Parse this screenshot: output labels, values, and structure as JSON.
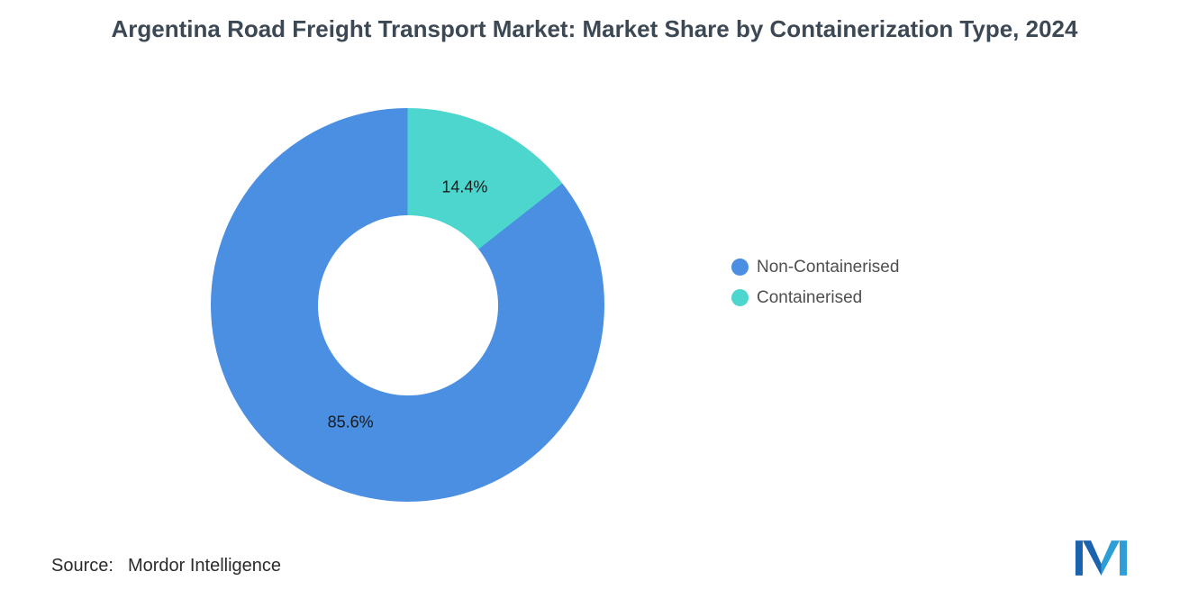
{
  "title": "Argentina Road Freight Transport Market: Market Share by Containerization Type, 2024",
  "source": {
    "prefix": "Source:",
    "text": "Mordor Intelligence"
  },
  "legend": [
    {
      "label": "Non-Containerised",
      "color": "#4a8fe2"
    },
    {
      "label": "Containerised",
      "color": "#4dd6ce"
    }
  ],
  "logo": {
    "name": "mordor-intelligence-logo",
    "color_dark": "#1b63ae",
    "color_light": "#2d9fd6"
  },
  "chart_data": {
    "type": "pie",
    "donut": true,
    "title": "Argentina Road Freight Transport Market: Market Share by Containerization Type, 2024",
    "start_angle_deg_from_top": 0,
    "direction": "clockwise",
    "legend_position": "right",
    "slices": [
      {
        "label": "Containerised",
        "value": 14.4,
        "display": "14.4%",
        "color": "#4dd6ce"
      },
      {
        "label": "Non-Containerised",
        "value": 85.6,
        "display": "85.6%",
        "color": "#4a8fe2"
      }
    ]
  }
}
